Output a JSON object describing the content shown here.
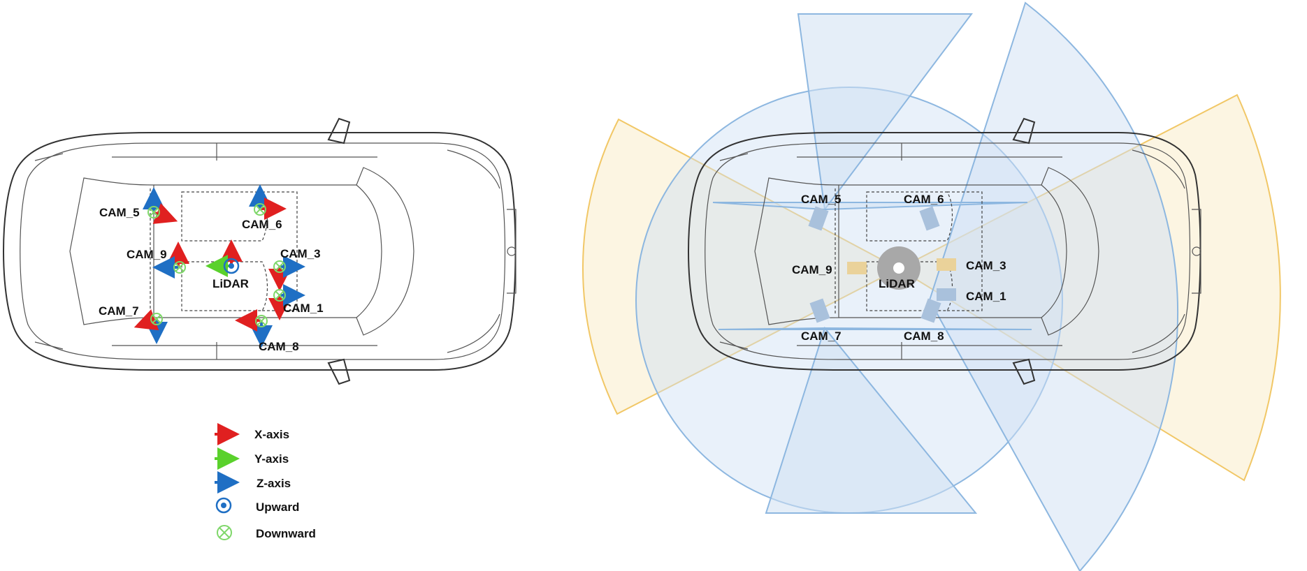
{
  "left": {
    "cameras": [
      {
        "id": "cam5",
        "label": "CAM_5"
      },
      {
        "id": "cam6",
        "label": "CAM_6"
      },
      {
        "id": "cam9",
        "label": "CAM_9"
      },
      {
        "id": "cam3",
        "label": "CAM_3"
      },
      {
        "id": "cam1",
        "label": "CAM_1"
      },
      {
        "id": "cam7",
        "label": "CAM_7"
      },
      {
        "id": "cam8",
        "label": "CAM_8"
      }
    ],
    "lidar_label": "LiDAR"
  },
  "legend": {
    "x_axis": "X-axis",
    "y_axis": "Y-axis",
    "z_axis": "Z-axis",
    "upward": "Upward",
    "downward": "Downward"
  },
  "right": {
    "cameras": [
      {
        "id": "cam5",
        "label": "CAM_5"
      },
      {
        "id": "cam6",
        "label": "CAM_6"
      },
      {
        "id": "cam9",
        "label": "CAM_9"
      },
      {
        "id": "cam3",
        "label": "CAM_3"
      },
      {
        "id": "cam1",
        "label": "CAM_1"
      },
      {
        "id": "cam7",
        "label": "CAM_7"
      },
      {
        "id": "cam8",
        "label": "CAM_8"
      }
    ],
    "lidar_label": "LiDAR"
  },
  "colors": {
    "x_axis": "#e02020",
    "y_axis": "#5ad12c",
    "z_axis": "#1f6fc4",
    "downward": "#7fd76a",
    "fov_blue_fill": "#cfe0f3",
    "fov_blue_stroke": "#8db7e0",
    "fov_yellow_fill": "#fbf1d6",
    "fov_yellow_stroke": "#f1c766",
    "lidar_gray": "#a8a8a8"
  }
}
